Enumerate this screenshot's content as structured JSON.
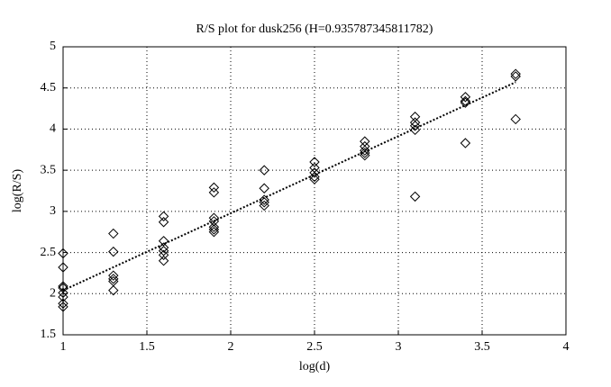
{
  "chart_data": {
    "type": "scatter",
    "title": "R/S plot for dusk256 (H=0.935787345811782)",
    "x_label": "log(d)",
    "y_label": "log(R/S)",
    "xlim": [
      1,
      4
    ],
    "xticks": [
      1,
      1.5,
      2,
      2.5,
      3,
      3.5,
      4
    ],
    "ylim": [
      1.5,
      5
    ],
    "yticks": [
      1.5,
      2,
      2.5,
      3,
      3.5,
      4,
      4.5,
      5
    ],
    "grid": true,
    "series": [
      {
        "kind": "points",
        "marker": "diamond",
        "color": "#000000",
        "x": [
          1,
          1,
          1,
          1,
          1,
          1,
          1,
          1,
          1.3,
          1.3,
          1.3,
          1.3,
          1.3,
          1.3,
          1.6,
          1.6,
          1.6,
          1.6,
          1.6,
          1.6,
          1.6,
          1.9,
          1.9,
          1.9,
          1.9,
          1.9,
          1.9,
          1.9,
          2.2,
          2.2,
          2.2,
          2.2,
          2.2,
          2.5,
          2.5,
          2.5,
          2.5,
          2.5,
          2.8,
          2.8,
          2.8,
          2.8,
          2.8,
          3.1,
          3.1,
          3.1,
          3.1,
          3.1,
          3.4,
          3.4,
          3.4,
          3.4,
          3.7,
          3.7,
          3.7
        ],
        "values": [
          2.49,
          2.32,
          2.09,
          2.07,
          2.01,
          1.96,
          1.88,
          1.84,
          2.73,
          2.51,
          2.22,
          2.18,
          2.15,
          2.04,
          2.94,
          2.87,
          2.64,
          2.56,
          2.52,
          2.47,
          2.4,
          3.29,
          3.23,
          2.92,
          2.88,
          2.81,
          2.78,
          2.75,
          3.5,
          3.28,
          3.14,
          3.11,
          3.07,
          3.6,
          3.53,
          3.47,
          3.42,
          3.39,
          3.85,
          3.79,
          3.74,
          3.71,
          3.68,
          4.15,
          4.08,
          4.04,
          3.99,
          3.18,
          4.39,
          4.34,
          4.32,
          3.83,
          4.67,
          4.64,
          4.12
        ]
      },
      {
        "kind": "line",
        "color": "#000000",
        "x": [
          1,
          3.7
        ],
        "values": [
          2.04,
          4.57
        ]
      }
    ]
  }
}
